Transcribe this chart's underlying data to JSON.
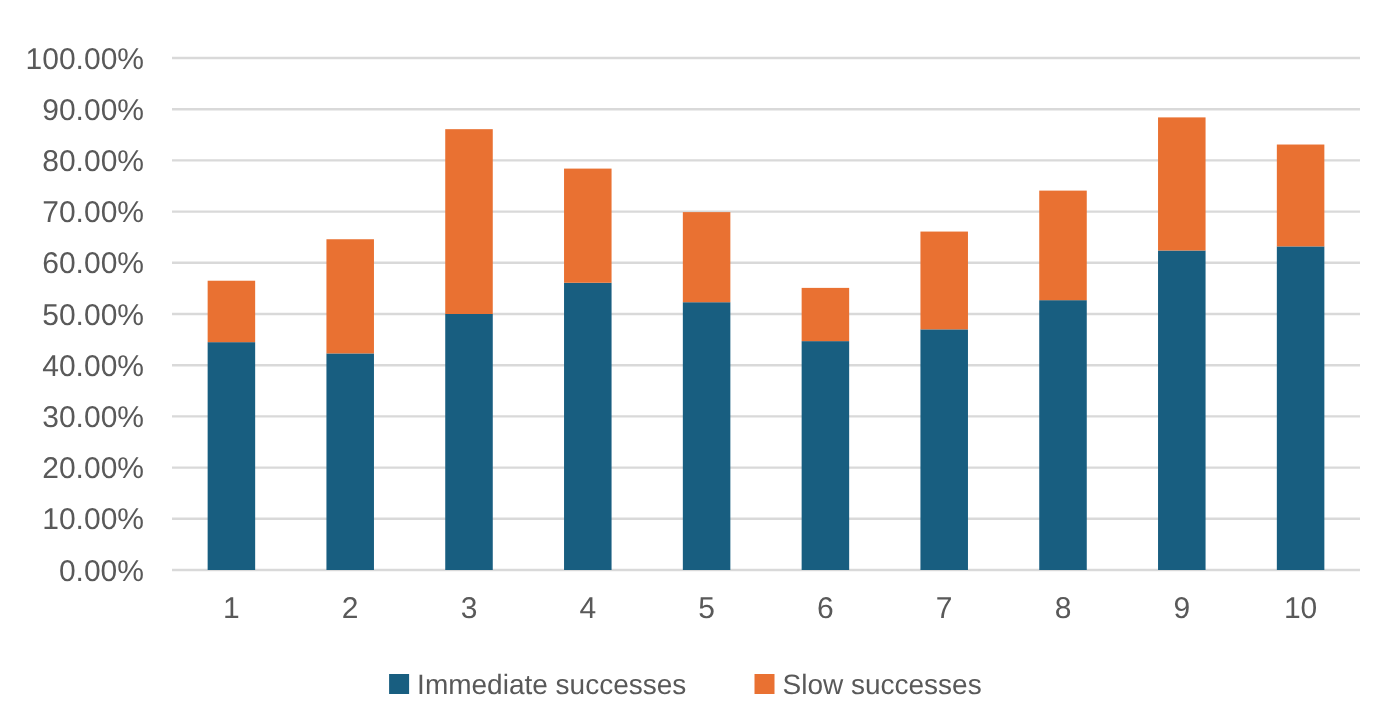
{
  "chart_data": {
    "type": "bar",
    "stacked": true,
    "categories": [
      "1",
      "2",
      "3",
      "4",
      "5",
      "6",
      "7",
      "8",
      "9",
      "10"
    ],
    "series": [
      {
        "name": "Immediate successes",
        "color": "#185e80",
        "values": [
          44.5,
          42.3,
          50.0,
          56.1,
          52.3,
          44.7,
          47.0,
          52.7,
          62.4,
          63.2
        ]
      },
      {
        "name": "Slow successes",
        "color": "#e97132",
        "values": [
          12.0,
          22.3,
          36.1,
          22.3,
          17.6,
          10.4,
          19.1,
          21.4,
          26.0,
          19.9
        ]
      }
    ],
    "ylim": [
      0,
      100
    ],
    "yticks": [
      {
        "value": 0,
        "label": "0.00%"
      },
      {
        "value": 10,
        "label": "10.00%"
      },
      {
        "value": 20,
        "label": "20.00%"
      },
      {
        "value": 30,
        "label": "30.00%"
      },
      {
        "value": 40,
        "label": "40.00%"
      },
      {
        "value": 50,
        "label": "50.00%"
      },
      {
        "value": 60,
        "label": "60.00%"
      },
      {
        "value": 70,
        "label": "70.00%"
      },
      {
        "value": 80,
        "label": "80.00%"
      },
      {
        "value": 90,
        "label": "90.00%"
      },
      {
        "value": 100,
        "label": "100.00%"
      }
    ],
    "grid": "y",
    "legend": "bottom"
  }
}
